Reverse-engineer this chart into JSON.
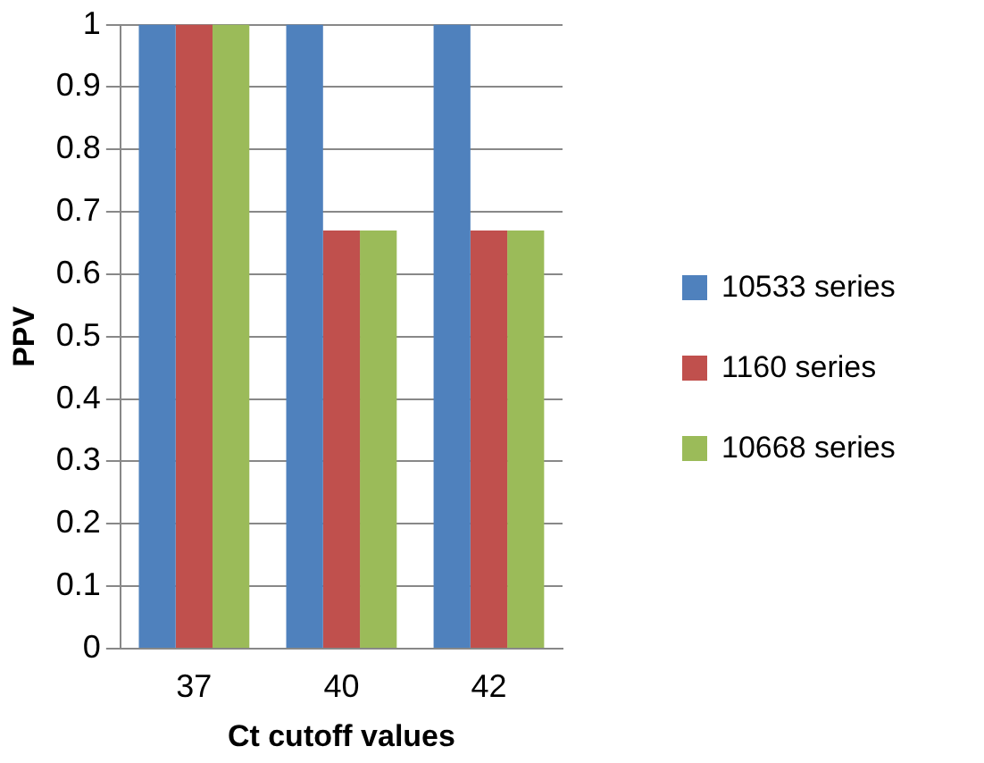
{
  "chart_data": {
    "type": "bar",
    "xlabel": "Ct cutoff values",
    "ylabel": "PPV",
    "categories": [
      "37",
      "40",
      "42"
    ],
    "series": [
      {
        "name": "10533 series",
        "color": "#4f81bd",
        "values": [
          1,
          1,
          1
        ]
      },
      {
        "name": "1160 series",
        "color": "#c0504d",
        "values": [
          1,
          0.67,
          0.67
        ]
      },
      {
        "name": "10668 series",
        "color": "#9bbb59",
        "values": [
          1,
          0.67,
          0.67
        ]
      }
    ],
    "ylim": [
      0,
      1
    ],
    "yticks": [
      0,
      0.1,
      0.2,
      0.3,
      0.4,
      0.5,
      0.6,
      0.7,
      0.8,
      0.9,
      1
    ],
    "grid": "y",
    "legend": "right"
  }
}
